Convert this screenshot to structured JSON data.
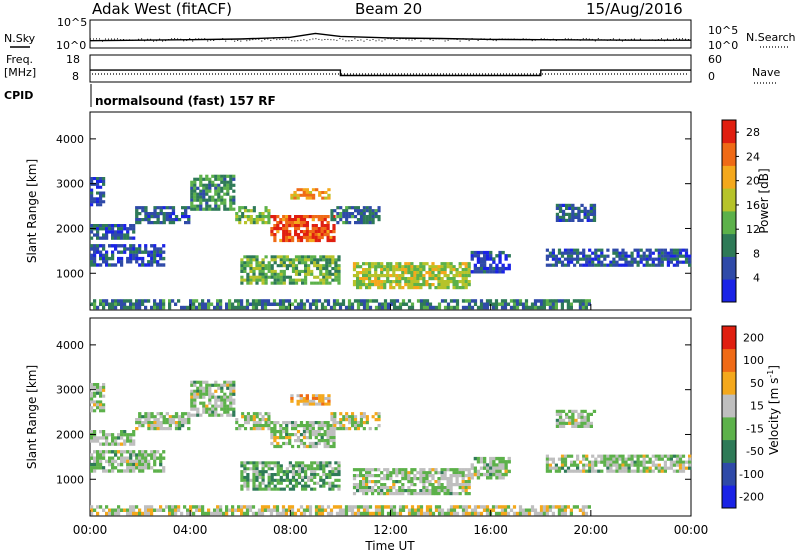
{
  "header": {
    "station": "Adak West (fitACF)",
    "beam": "Beam 20",
    "date": "15/Aug/2016"
  },
  "left_labels": {
    "nsky": "N.Sky",
    "freq": "Freq.",
    "mhz": "[MHz]",
    "cpid": "CPID"
  },
  "right_labels": {
    "nsearch": "N.Search",
    "nave": "Nave"
  },
  "noise_ticks": {
    "top": "10^5",
    "bottom": "10^0"
  },
  "freq_ticks": [
    "18",
    "8"
  ],
  "nave_ticks": [
    "60",
    "0"
  ],
  "cpid_text": "normalsound (fast) 157 RF",
  "x_axis": {
    "label": "Time UT",
    "ticks": [
      "00:00",
      "04:00",
      "08:00",
      "12:00",
      "16:00",
      "20:00",
      "00:00"
    ]
  },
  "chart_data": [
    {
      "type": "heatmap",
      "title": "",
      "xlabel": "",
      "ylabel": "Slant Range [km]",
      "xlim": [
        0,
        24
      ],
      "ylim": [
        180,
        4600
      ],
      "yticks": [
        1000,
        2000,
        3000,
        4000
      ],
      "colorbar": {
        "label": "Power [dB]",
        "ticks": [
          "4",
          "8",
          "12",
          "16",
          "20",
          "24",
          "28"
        ],
        "range": [
          0,
          30
        ],
        "colors": [
          "#1a23e6",
          "#2f4aa8",
          "#2e7a57",
          "#5cb14a",
          "#b6c32a",
          "#f4a81c",
          "#ef6a16",
          "#e01f10"
        ]
      },
      "regions": [
        {
          "t": [
            0.0,
            1.8
          ],
          "r": [
            1750,
            2100
          ],
          "value": 6
        },
        {
          "t": [
            0.0,
            0.6
          ],
          "r": [
            2500,
            3150
          ],
          "value": 5
        },
        {
          "t": [
            1.8,
            4.0
          ],
          "r": [
            2100,
            2500
          ],
          "value": 7
        },
        {
          "t": [
            4.0,
            5.8
          ],
          "r": [
            2400,
            3200
          ],
          "value": 10
        },
        {
          "t": [
            5.8,
            7.2
          ],
          "r": [
            2100,
            2500
          ],
          "value": 14
        },
        {
          "t": [
            7.2,
            9.8
          ],
          "r": [
            1700,
            2300
          ],
          "value": 26
        },
        {
          "t": [
            8.0,
            9.6
          ],
          "r": [
            2650,
            2900
          ],
          "value": 22
        },
        {
          "t": [
            9.6,
            11.6
          ],
          "r": [
            2100,
            2500
          ],
          "value": 8
        },
        {
          "t": [
            0.0,
            3.0
          ],
          "r": [
            1150,
            1650
          ],
          "value": 5
        },
        {
          "t": [
            6.0,
            10.0
          ],
          "r": [
            750,
            1400
          ],
          "value": 13
        },
        {
          "t": [
            10.5,
            15.2
          ],
          "r": [
            650,
            1250
          ],
          "value": 16
        },
        {
          "t": [
            15.2,
            16.8
          ],
          "r": [
            1000,
            1500
          ],
          "value": 5
        },
        {
          "t": [
            18.6,
            20.2
          ],
          "r": [
            2150,
            2550
          ],
          "value": 7
        },
        {
          "t": [
            18.2,
            24.0
          ],
          "r": [
            1150,
            1550
          ],
          "value": 6
        },
        {
          "t": [
            0.0,
            20.0
          ],
          "r": [
            200,
            420
          ],
          "value": 9
        }
      ]
    },
    {
      "type": "heatmap",
      "title": "",
      "xlabel": "Time UT",
      "ylabel": "Slant Range [km]",
      "xlim": [
        0,
        24
      ],
      "ylim": [
        180,
        4600
      ],
      "yticks": [
        1000,
        2000,
        3000,
        4000
      ],
      "colorbar": {
        "label": "Velocity [m s^-1]",
        "ticks": [
          "200",
          "100",
          "50",
          "15",
          "-15",
          "-50",
          "-100",
          "-200"
        ],
        "range": [
          -250,
          250
        ],
        "colors": [
          "#1a23e6",
          "#2f4aa8",
          "#2e7a57",
          "#5cb14a",
          "#bfbfbf",
          "#f4a81c",
          "#ef6a16",
          "#e01f10"
        ]
      },
      "regions": [
        {
          "t": [
            0.0,
            1.8
          ],
          "r": [
            1750,
            2100
          ],
          "value": 0
        },
        {
          "t": [
            0.0,
            0.6
          ],
          "r": [
            2500,
            3150
          ],
          "value": 0
        },
        {
          "t": [
            1.8,
            4.0
          ],
          "r": [
            2100,
            2500
          ],
          "value": 0
        },
        {
          "t": [
            4.0,
            5.8
          ],
          "r": [
            2400,
            3200
          ],
          "value": 0
        },
        {
          "t": [
            5.8,
            7.2
          ],
          "r": [
            2100,
            2500
          ],
          "value": 0
        },
        {
          "t": [
            7.2,
            9.8
          ],
          "r": [
            1700,
            2300
          ],
          "value": 0
        },
        {
          "t": [
            8.0,
            9.6
          ],
          "r": [
            2650,
            2900
          ],
          "value": 80
        },
        {
          "t": [
            9.6,
            11.6
          ],
          "r": [
            2100,
            2500
          ],
          "value": 20
        },
        {
          "t": [
            0.0,
            3.0
          ],
          "r": [
            1150,
            1650
          ],
          "value": 0
        },
        {
          "t": [
            6.0,
            10.0
          ],
          "r": [
            750,
            1400
          ],
          "value": -40
        },
        {
          "t": [
            10.5,
            15.2
          ],
          "r": [
            650,
            1250
          ],
          "value": 0
        },
        {
          "t": [
            15.2,
            16.8
          ],
          "r": [
            1000,
            1500
          ],
          "value": 0
        },
        {
          "t": [
            18.6,
            20.2
          ],
          "r": [
            2150,
            2550
          ],
          "value": 0
        },
        {
          "t": [
            18.2,
            24.0
          ],
          "r": [
            1150,
            1550
          ],
          "value": 0
        },
        {
          "t": [
            0.0,
            20.0
          ],
          "r": [
            200,
            420
          ],
          "value": 30
        }
      ]
    },
    {
      "type": "line",
      "title": "",
      "ylabel": "N.Sky / N.Search",
      "log_scale": true,
      "x": [
        0,
        2,
        4,
        6,
        8,
        9,
        10,
        12,
        14,
        16,
        18,
        20,
        22,
        24
      ],
      "series": [
        {
          "values": [
            20,
            25,
            30,
            40,
            80,
            400,
            120,
            60,
            50,
            35,
            30,
            28,
            25,
            25
          ]
        }
      ]
    },
    {
      "type": "line",
      "title": "",
      "ylabel": "Freq. [MHz] / Nave",
      "x": [
        0,
        10,
        10,
        18,
        18,
        24
      ],
      "series": [
        {
          "values": [
            12.4,
            12.4,
            10.4,
            10.4,
            12.4,
            12.4
          ]
        },
        {
          "values": [
            10,
            10,
            10,
            10,
            10,
            10
          ]
        }
      ]
    }
  ]
}
